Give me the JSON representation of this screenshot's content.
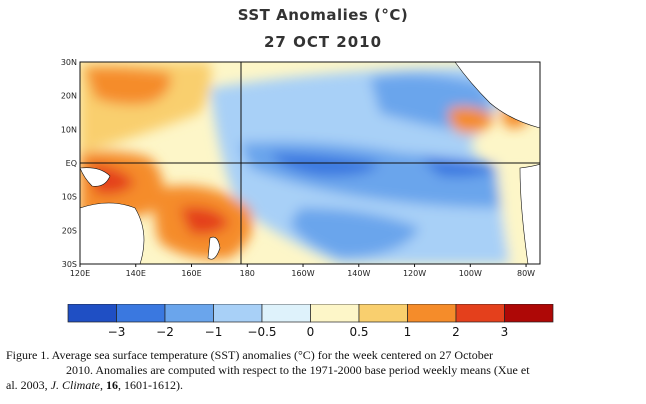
{
  "chart_data": {
    "type": "heatmap",
    "title": "SST Anomalies (°C)",
    "subtitle": "27 OCT 2010",
    "x_ticks": [
      "120E",
      "140E",
      "160E",
      "180",
      "160W",
      "140W",
      "120W",
      "100W",
      "80W"
    ],
    "x_range_deg_east": [
      120,
      290
    ],
    "y_ticks": [
      "30N",
      "20N",
      "10N",
      "EQ",
      "10S",
      "20S",
      "30S"
    ],
    "y_range_deg": [
      -30,
      30
    ],
    "colorbar": {
      "levels": [
        -4,
        -3,
        -2,
        -1,
        -0.5,
        0,
        0.5,
        1,
        2,
        3,
        4
      ],
      "labels": [
        "−3",
        "−2",
        "−1",
        "−0.5",
        "0",
        "0.5",
        "1",
        "2",
        "3"
      ],
      "colors": [
        "#1f4fc4",
        "#3a78e0",
        "#6aa5ec",
        "#a8d0f7",
        "#def2fb",
        "#fdf6c8",
        "#f9cf6e",
        "#f58c2a",
        "#e4401c",
        "#ae0806"
      ]
    },
    "anomaly_regions": [
      {
        "region": "western Pacific north of equator",
        "anomaly": 1.5
      },
      {
        "region": "Maritime Continent / Coral Sea",
        "anomaly": 2.0
      },
      {
        "region": "southwest Pacific near 160E-180, 10-25S",
        "anomaly": 1.5
      },
      {
        "region": "central equatorial Pacific",
        "anomaly": -1.5
      },
      {
        "region": "eastern equatorial Pacific",
        "anomaly": -1.0
      },
      {
        "region": "off Central America 10-15N",
        "anomaly": 2.0
      }
    ]
  },
  "caption": {
    "line1": "Figure 1. Average sea surface temperature (SST) anomalies (°C) for the week centered on 27 October",
    "line2_a": "2010.   Anomalies are computed with respect to the 1971-2000 base period weekly means (Xue et",
    "line3_a": "al. 2003, ",
    "journal": "J. Climate",
    "line3_b": ", ",
    "volume": "16",
    "line3_c": ", 1601-1612)."
  }
}
